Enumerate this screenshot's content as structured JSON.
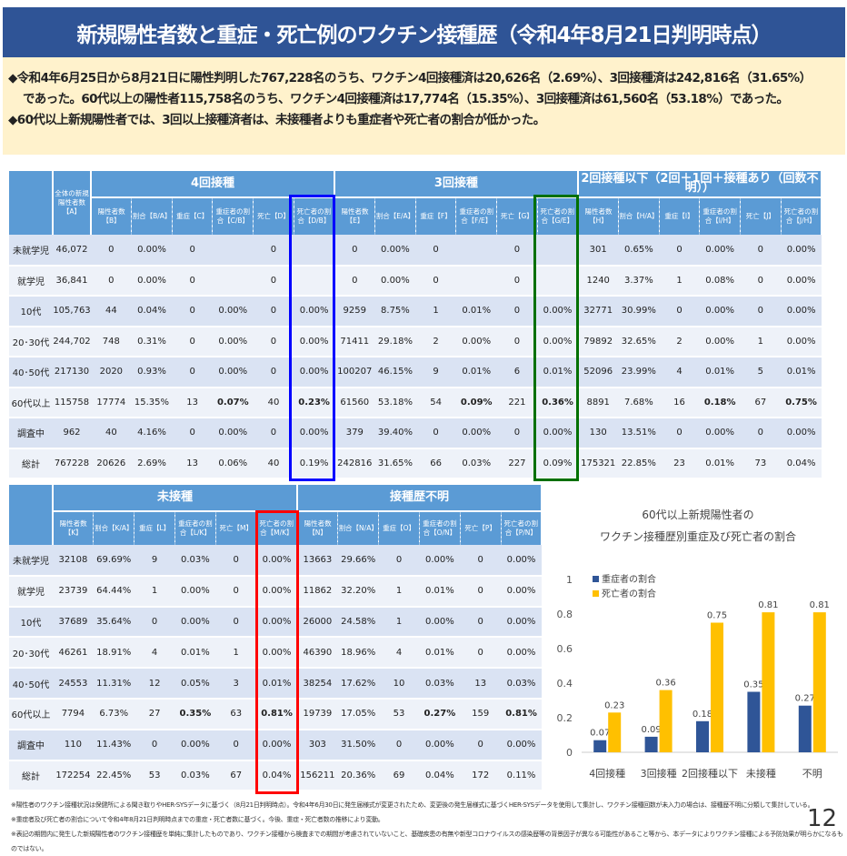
{
  "title": "新規陽性者数と重症・死亡例のワクチン接種歴（令和4年8月21日判明時点）",
  "summary": [
    "◆令和4年6月25日から8月21日に陽性判明した767,228名のうち、ワクチン4回接種済は20,626名（2.69%）、3回接種済は242,816名（31.65%）",
    "であった。60代以上の陽性者115,758名のうち、ワクチン4回接種済は17,774名（15.35%）、3回接種済は61,560名（53.18%）であった。",
    "◆60代以上新規陽性者では、3回以上接種済者は、未接種者よりも重症者や死亡者の割合が低かった。"
  ],
  "table1": {
    "total_header": "全体の新規陽性者数【A】",
    "groups": [
      "4回接種",
      "3回接種",
      "2回接種以下（2回＋1回＋接種あり（回数不明））"
    ],
    "subheaders": [
      [
        "陽性者数【B】",
        "割合【B/A】",
        "重症【C】",
        "重症者の割合【C/B】",
        "死亡【D】",
        "死亡者の割合【D/B】"
      ],
      [
        "陽性者数【E】",
        "割合【E/A】",
        "重症【F】",
        "重症者の割合【F/E】",
        "死亡【G】",
        "死亡者の割合【G/E】"
      ],
      [
        "陽性者数【H】",
        "割合【H/A】",
        "重症【I】",
        "重症者の割合【I/H】",
        "死亡【J】",
        "死亡者の割合【J/H】"
      ]
    ],
    "rows": [
      {
        "label": "未就学児",
        "total": "46,072",
        "cells": [
          "0",
          "0.00%",
          "0",
          "",
          "0",
          "",
          "0",
          "0.00%",
          "0",
          "",
          "0",
          "",
          "301",
          "0.65%",
          "0",
          "0.00%",
          "0",
          "0.00%"
        ]
      },
      {
        "label": "就学児",
        "total": "36,841",
        "cells": [
          "0",
          "0.00%",
          "0",
          "",
          "0",
          "",
          "0",
          "0.00%",
          "0",
          "",
          "0",
          "",
          "1240",
          "3.37%",
          "1",
          "0.08%",
          "0",
          "0.00%"
        ]
      },
      {
        "label": "10代",
        "total": "105,763",
        "cells": [
          "44",
          "0.04%",
          "0",
          "0.00%",
          "0",
          "0.00%",
          "9259",
          "8.75%",
          "1",
          "0.01%",
          "0",
          "0.00%",
          "32771",
          "30.99%",
          "0",
          "0.00%",
          "0",
          "0.00%"
        ]
      },
      {
        "label": "20･30代",
        "total": "244,702",
        "cells": [
          "748",
          "0.31%",
          "0",
          "0.00%",
          "0",
          "0.00%",
          "71411",
          "29.18%",
          "2",
          "0.00%",
          "0",
          "0.00%",
          "79892",
          "32.65%",
          "2",
          "0.00%",
          "1",
          "0.00%"
        ]
      },
      {
        "label": "40･50代",
        "total": "217130",
        "cells": [
          "2020",
          "0.93%",
          "0",
          "0.00%",
          "0",
          "0.00%",
          "100207",
          "46.15%",
          "9",
          "0.01%",
          "6",
          "0.01%",
          "52096",
          "23.99%",
          "4",
          "0.01%",
          "5",
          "0.01%"
        ]
      },
      {
        "label": "60代以上",
        "total": "115758",
        "bold": true,
        "cells": [
          "17774",
          "15.35%",
          "13",
          "0.07%",
          "40",
          "0.23%",
          "61560",
          "53.18%",
          "54",
          "0.09%",
          "221",
          "0.36%",
          "8891",
          "7.68%",
          "16",
          "0.18%",
          "67",
          "0.75%"
        ]
      },
      {
        "label": "調査中",
        "total": "962",
        "cells": [
          "40",
          "4.16%",
          "0",
          "0.00%",
          "0",
          "0.00%",
          "379",
          "39.40%",
          "0",
          "0.00%",
          "0",
          "0.00%",
          "130",
          "13.51%",
          "0",
          "0.00%",
          "0",
          "0.00%"
        ]
      },
      {
        "label": "総計",
        "total": "767228",
        "cells": [
          "20626",
          "2.69%",
          "13",
          "0.06%",
          "40",
          "0.19%",
          "242816",
          "31.65%",
          "66",
          "0.03%",
          "227",
          "0.09%",
          "175321",
          "22.85%",
          "23",
          "0.01%",
          "73",
          "0.04%"
        ]
      }
    ]
  },
  "table2": {
    "groups": [
      "未接種",
      "接種歴不明"
    ],
    "subheaders": [
      [
        "陽性者数【K】",
        "割合【K/A】",
        "重症【L】",
        "重症者の割合【L/K】",
        "死亡【M】",
        "死亡者の割合【M/K】"
      ],
      [
        "陽性者数【N】",
        "割合【N/A】",
        "重症【O】",
        "重症者の割合【O/N】",
        "死亡【P】",
        "死亡者の割合【P/N】"
      ]
    ],
    "rows": [
      {
        "label": "未就学児",
        "cells": [
          "32108",
          "69.69%",
          "9",
          "0.03%",
          "0",
          "0.00%",
          "13663",
          "29.66%",
          "0",
          "0.00%",
          "0",
          "0.00%"
        ]
      },
      {
        "label": "就学児",
        "cells": [
          "23739",
          "64.44%",
          "1",
          "0.00%",
          "0",
          "0.00%",
          "11862",
          "32.20%",
          "1",
          "0.01%",
          "0",
          "0.00%"
        ]
      },
      {
        "label": "10代",
        "cells": [
          "37689",
          "35.64%",
          "0",
          "0.00%",
          "0",
          "0.00%",
          "26000",
          "24.58%",
          "1",
          "0.00%",
          "0",
          "0.00%"
        ]
      },
      {
        "label": "20･30代",
        "cells": [
          "46261",
          "18.91%",
          "4",
          "0.01%",
          "1",
          "0.00%",
          "46390",
          "18.96%",
          "4",
          "0.01%",
          "0",
          "0.00%"
        ]
      },
      {
        "label": "40･50代",
        "cells": [
          "24553",
          "11.31%",
          "12",
          "0.05%",
          "3",
          "0.01%",
          "38254",
          "17.62%",
          "10",
          "0.03%",
          "13",
          "0.03%"
        ]
      },
      {
        "label": "60代以上",
        "bold": true,
        "cells": [
          "7794",
          "6.73%",
          "27",
          "0.35%",
          "63",
          "0.81%",
          "19739",
          "17.05%",
          "53",
          "0.27%",
          "159",
          "0.81%"
        ]
      },
      {
        "label": "調査中",
        "cells": [
          "110",
          "11.43%",
          "0",
          "0.00%",
          "0",
          "0.00%",
          "303",
          "31.50%",
          "0",
          "0.00%",
          "0",
          "0.00%"
        ]
      },
      {
        "label": "総計",
        "cells": [
          "172254",
          "22.45%",
          "53",
          "0.03%",
          "67",
          "0.04%",
          "156211",
          "20.36%",
          "69",
          "0.04%",
          "172",
          "0.11%"
        ]
      }
    ]
  },
  "chart_data": {
    "type": "bar",
    "title": "60代以上新規陽性者の\nワクチン接種歴別重症及び死亡者の割合",
    "categories": [
      "4回接種",
      "3回接種",
      "2回接種以下",
      "未接種",
      "不明"
    ],
    "series": [
      {
        "name": "重症者の割合",
        "color": "#2f5597",
        "values": [
          0.07,
          0.09,
          0.18,
          0.35,
          0.27
        ]
      },
      {
        "name": "死亡者の割合",
        "color": "#ffc000",
        "values": [
          0.23,
          0.36,
          0.75,
          0.81,
          0.81
        ]
      }
    ],
    "ylim": [
      0,
      1
    ],
    "yticks": [
      "0",
      "0.2",
      "0.4",
      "0.6",
      "0.8",
      "1"
    ],
    "legend": "top-left"
  },
  "notes": [
    "※陽性者のワクチン接種状況は保健所による聞き取りやHER-SYSデータに基づく（8月21日判明時点）。令和4年6月30日に発生届様式が変更されたため、変更後の発生届様式に基づくHER-SYSデータを使用して集計し、ワクチン接種回数が未入力の場合は、接種歴不明に分類して集計している。",
    "※重症者及び死亡者の割合について令和4年8月21日判明時点までの重症・死亡者数に基づく。今後、重症・死亡者数の推移により変動。",
    "※表記の期間内に発生した新規陽性者のワクチン接種歴を単純に集計したものであり、ワクチン接種から検査までの期間が考慮されていないこと、基礎疾患の有無や新型コロナウイルスの感染歴等の背景因子が異なる可能性があること等から、本データによりワクチン接種による予防効果が明らかになるものではない。"
  ],
  "page_number": "12",
  "colors": {
    "title_bg": "#2f5496",
    "summary_bg": "#fff2cc",
    "header_bg": "#5b9bd5",
    "highlight_d": "#0000ff",
    "highlight_g": "#007000",
    "highlight_m": "#ff0000"
  }
}
